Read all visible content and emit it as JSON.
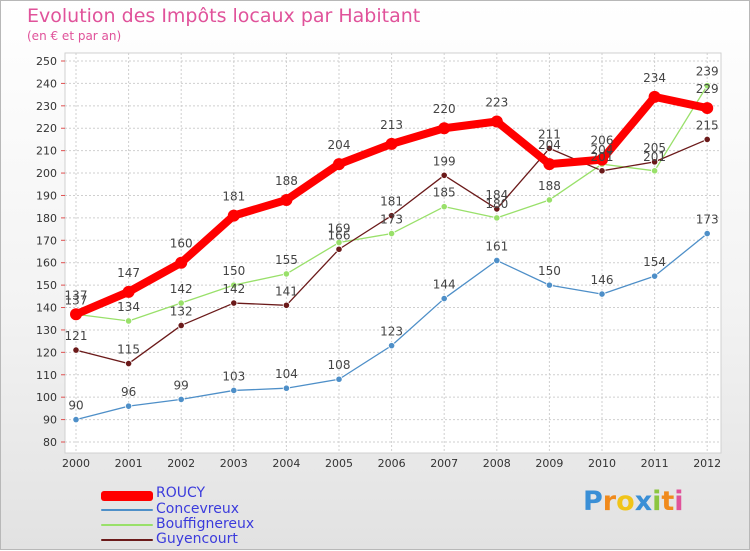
{
  "chart_data": {
    "type": "line",
    "title": "Evolution des Impôts locaux par Habitant",
    "subtitle": "(en € et par an)",
    "x": [
      "2000",
      "2001",
      "2002",
      "2003",
      "2004",
      "2005",
      "2006",
      "2007",
      "2008",
      "2009",
      "2010",
      "2011",
      "2012"
    ],
    "ylim": [
      80,
      250
    ],
    "yticks": [
      80,
      90,
      100,
      110,
      120,
      130,
      140,
      150,
      160,
      170,
      180,
      190,
      200,
      210,
      220,
      230,
      240,
      250
    ],
    "series": [
      {
        "name": "ROUCY",
        "color": "#ff0000",
        "values": [
          137,
          147,
          160,
          181,
          188,
          204,
          213,
          220,
          223,
          204,
          206,
          234,
          229
        ]
      },
      {
        "name": "Concevreux",
        "color": "#4e8fc8",
        "values": [
          90,
          96,
          99,
          103,
          104,
          108,
          123,
          144,
          161,
          150,
          146,
          154,
          173
        ]
      },
      {
        "name": "Bouffignereux",
        "color": "#99e06a",
        "values": [
          137,
          134,
          142,
          150,
          155,
          169,
          173,
          185,
          180,
          188,
          204,
          201,
          239
        ]
      },
      {
        "name": "Guyencourt",
        "color": "#6b1a1a",
        "values": [
          121,
          115,
          132,
          142,
          141,
          166,
          181,
          199,
          184,
          211,
          201,
          205,
          215
        ]
      }
    ],
    "legend_position": "bottom-left",
    "grid": true
  },
  "brand": {
    "logo_text": "Proxiti",
    "letters": [
      "P",
      "r",
      "o",
      "x",
      "i",
      "t",
      "i"
    ]
  }
}
